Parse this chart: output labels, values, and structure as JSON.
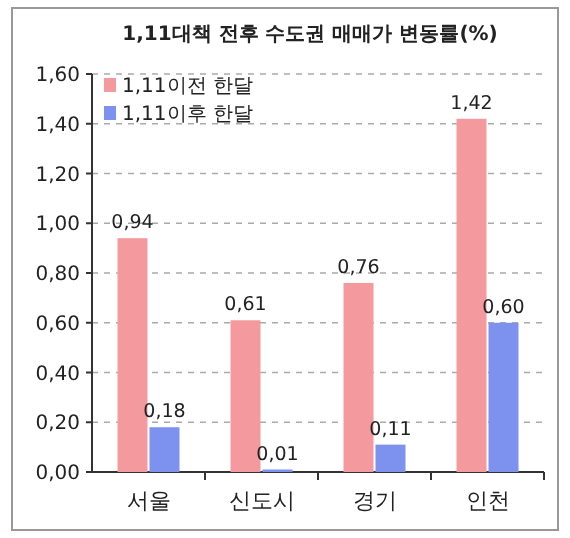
{
  "chart_data": {
    "type": "bar",
    "title": "1,11대책 전후 수도권 매매가 변동률(%)",
    "categories": [
      "서울",
      "신도시",
      "경기",
      "인천"
    ],
    "series": [
      {
        "name": "1,11이전 한달",
        "color": "#f4999d",
        "values": [
          0.94,
          0.61,
          0.76,
          1.42
        ],
        "value_labels": [
          "0,94",
          "0,61",
          "0,76",
          "1,42"
        ]
      },
      {
        "name": "1,11이후 한달",
        "color": "#7d92ee",
        "values": [
          0.18,
          0.01,
          0.11,
          0.6
        ],
        "value_labels": [
          "0,18",
          "0,01",
          "0,11",
          "0,60"
        ]
      }
    ],
    "ylim": [
      0,
      1.6
    ],
    "yticks": [
      {
        "value": 0,
        "label": "0,00"
      },
      {
        "value": 0.2,
        "label": "0,20"
      },
      {
        "value": 0.4,
        "label": "0,40"
      },
      {
        "value": 0.6,
        "label": "0,60"
      },
      {
        "value": 0.8,
        "label": "0,80"
      },
      {
        "value": 1.0,
        "label": "1,00"
      },
      {
        "value": 1.2,
        "label": "1,20"
      },
      {
        "value": 1.4,
        "label": "1,40"
      },
      {
        "value": 1.6,
        "label": "1,60"
      }
    ],
    "grid": "y",
    "legend": "top left"
  }
}
